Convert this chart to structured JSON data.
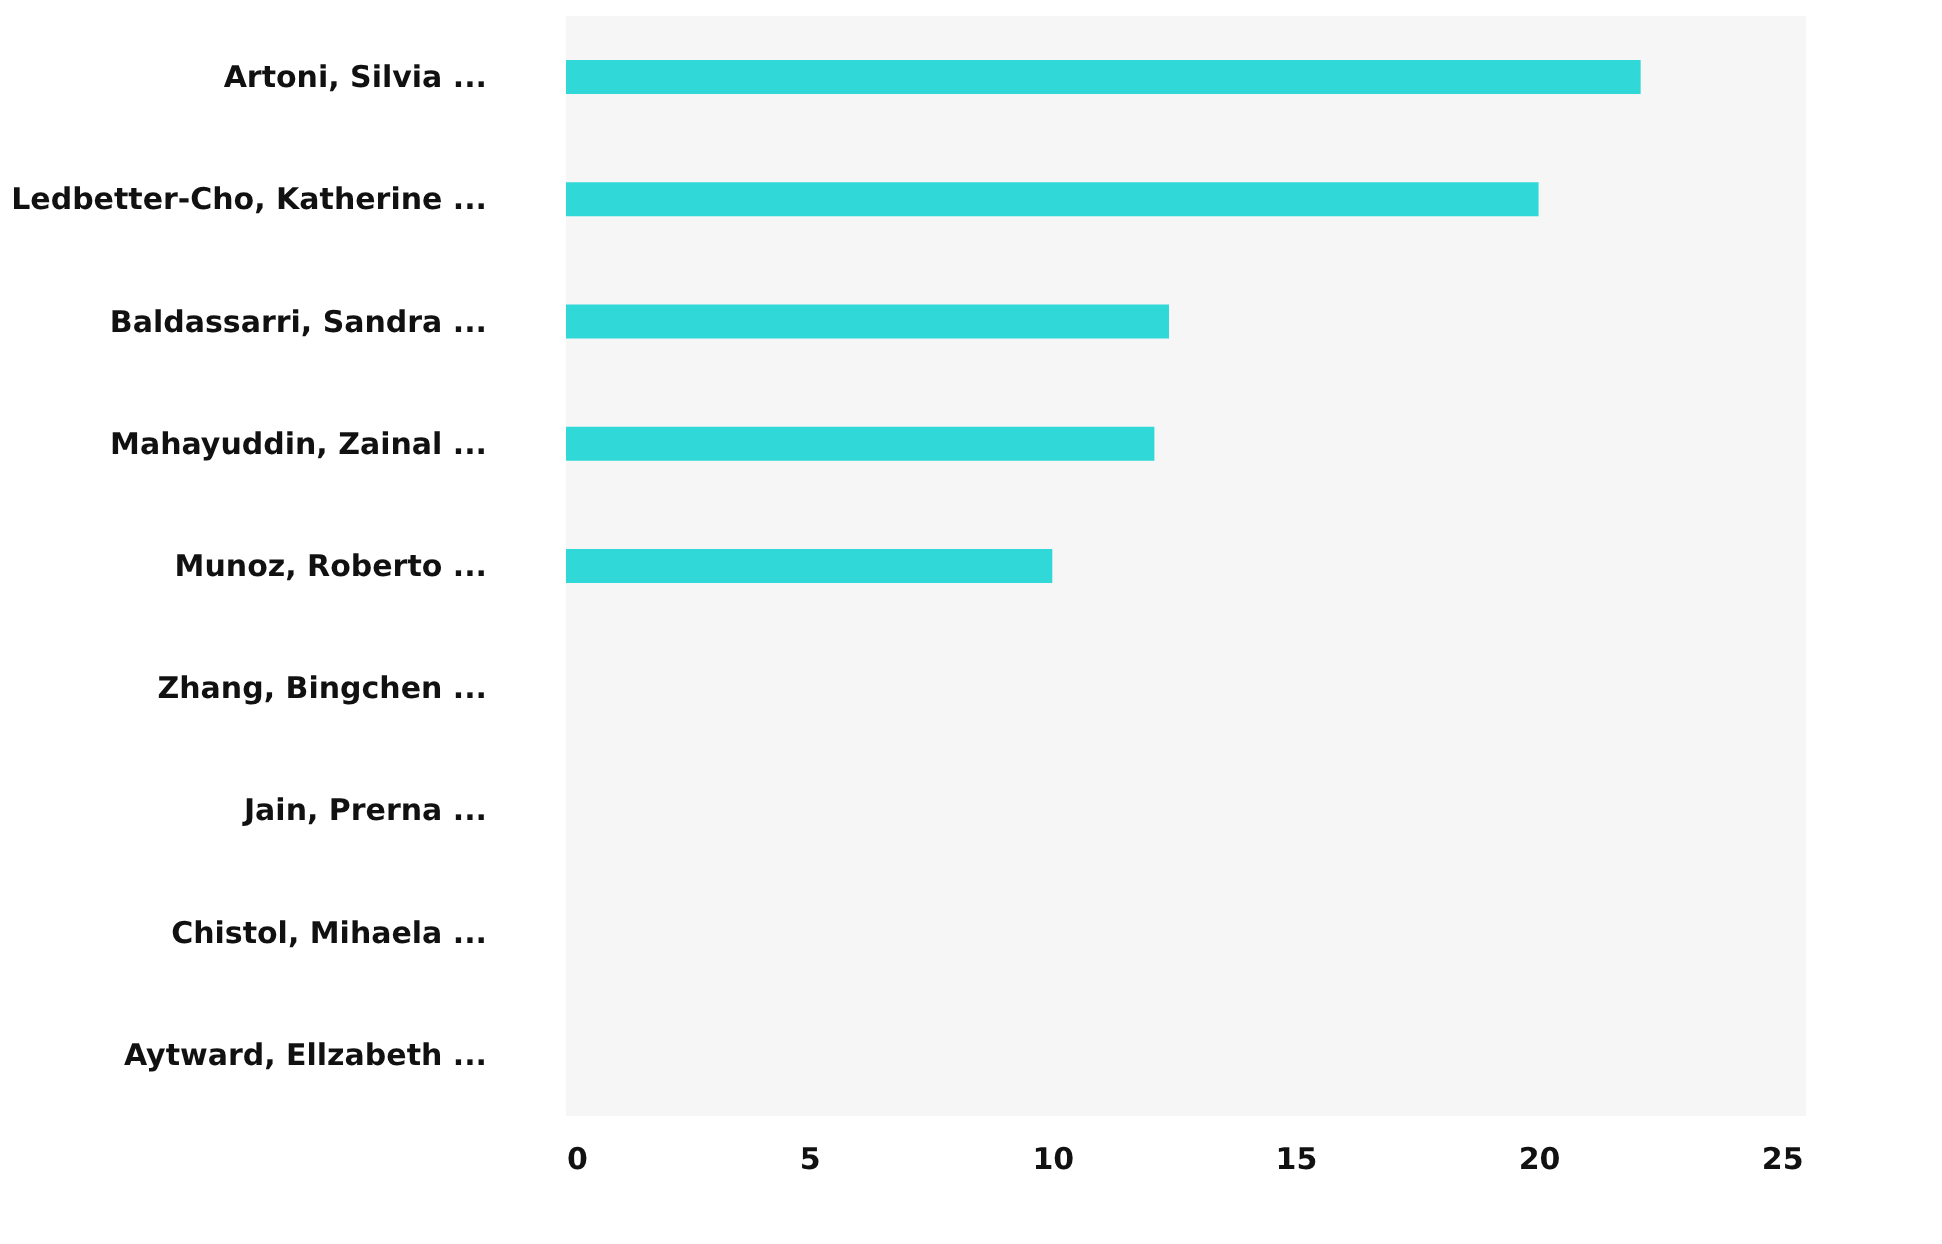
{
  "chart_data": {
    "type": "bar",
    "orientation": "horizontal",
    "categories": [
      "Artoni, Silvia ...",
      "Ledbetter-Cho, Katherine ...",
      "Baldassarri, Sandra ...",
      "Mahayuddin, Zainal ...",
      "Munoz, Roberto ...",
      "Zhang, Bingchen ...",
      "Jain, Prerna ...",
      "Chistol, Mihaela ...",
      "Aytward, Ellzabeth ..."
    ],
    "values": [
      22.1,
      20,
      12.4,
      12.1,
      10,
      0,
      0,
      0,
      0
    ],
    "color": "#30d8d8",
    "xlim": [
      0,
      25.5
    ],
    "xticks": [
      0,
      5,
      10,
      15,
      20,
      25
    ],
    "grid": false
  }
}
